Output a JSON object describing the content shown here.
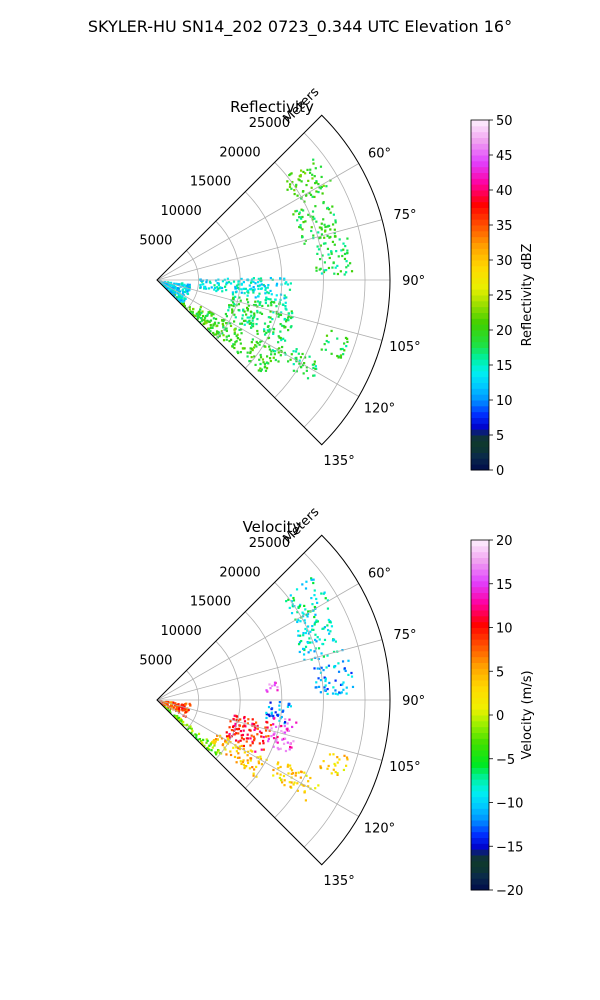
{
  "figure_title": "SKYLER-HU  SN14_202  0723_0.344 UTC Elevation 16°",
  "chart_data": [
    {
      "type": "polar-sector",
      "title": "Reflectivity",
      "radial_label": "Meters",
      "radial_ticks": [
        "5000",
        "10000",
        "15000",
        "20000",
        "25000"
      ],
      "radial_tick_values": [
        5000,
        10000,
        15000,
        20000,
        25000
      ],
      "r_max": 28000,
      "azimuth_ticks": [
        "60°",
        "75°",
        "90°",
        "105°",
        "120°",
        "135°"
      ],
      "azimuth_tick_values": [
        60,
        75,
        90,
        105,
        120,
        135
      ],
      "azimuth_range": [
        45,
        135
      ],
      "grid": true,
      "colorbar": {
        "label": "Reflectivity dBZ",
        "min": 0,
        "max": 50,
        "ticks": [
          "0",
          "5",
          "10",
          "15",
          "20",
          "25",
          "30",
          "35",
          "40",
          "45",
          "50"
        ]
      },
      "echo_regions": [
        {
          "az": [
            51,
            62
          ],
          "r": [
            19000,
            24000
          ],
          "value": 20
        },
        {
          "az": [
            63,
            76
          ],
          "r": [
            18000,
            23000
          ],
          "value": 19
        },
        {
          "az": [
            77,
            88
          ],
          "r": [
            19000,
            23500
          ],
          "value": 18
        },
        {
          "az": [
            88,
            100
          ],
          "r": [
            5000,
            16000
          ],
          "value": 14
        },
        {
          "az": [
            100,
            118
          ],
          "r": [
            9000,
            17000
          ],
          "value": 18
        },
        {
          "az": [
            120,
            132
          ],
          "r": [
            6000,
            17000
          ],
          "value": 20
        },
        {
          "az": [
            128,
            135
          ],
          "r": [
            0,
            10000
          ],
          "value": 20
        },
        {
          "az": [
            95,
            135
          ],
          "r": [
            0,
            4000
          ],
          "value": 13
        },
        {
          "az": [
            106,
            113
          ],
          "r": [
            21000,
            24000
          ],
          "value": 19
        },
        {
          "az": [
            116,
            124
          ],
          "r": [
            16000,
            22000
          ],
          "value": 18
        }
      ]
    },
    {
      "type": "polar-sector",
      "title": "Velocity",
      "radial_label": "Meters",
      "radial_ticks": [
        "5000",
        "10000",
        "15000",
        "20000",
        "25000"
      ],
      "radial_tick_values": [
        5000,
        10000,
        15000,
        20000,
        25000
      ],
      "r_max": 28000,
      "azimuth_ticks": [
        "60°",
        "75°",
        "90°",
        "105°",
        "120°",
        "135°"
      ],
      "azimuth_tick_values": [
        60,
        75,
        90,
        105,
        120,
        135
      ],
      "azimuth_range": [
        45,
        135
      ],
      "grid": true,
      "colorbar": {
        "label": "Velocity (m/s)",
        "min": -20,
        "max": 20,
        "ticks": [
          "−20",
          "−15",
          "−10",
          "−5",
          "0",
          "5",
          "10",
          "15",
          "20"
        ]
      },
      "echo_regions": [
        {
          "az": [
            51,
            62
          ],
          "r": [
            19000,
            24000
          ],
          "value": -8
        },
        {
          "az": [
            63,
            76
          ],
          "r": [
            18000,
            23000
          ],
          "value": -9
        },
        {
          "az": [
            77,
            88
          ],
          "r": [
            19000,
            23500
          ],
          "value": -11
        },
        {
          "az": [
            90,
            100
          ],
          "r": [
            13000,
            16000
          ],
          "value": -12
        },
        {
          "az": [
            100,
            118
          ],
          "r": [
            9000,
            14000
          ],
          "value": 10
        },
        {
          "az": [
            98,
            112
          ],
          "r": [
            14000,
            17000
          ],
          "value": 15
        },
        {
          "az": [
            118,
            128
          ],
          "r": [
            8000,
            15000
          ],
          "value": 4
        },
        {
          "az": [
            128,
            135
          ],
          "r": [
            0,
            10000
          ],
          "value": -2
        },
        {
          "az": [
            95,
            120
          ],
          "r": [
            0,
            4000
          ],
          "value": 8
        },
        {
          "az": [
            80,
            86
          ],
          "r": [
            13000,
            14500
          ],
          "value": 15
        },
        {
          "az": [
            106,
            113
          ],
          "r": [
            21000,
            24000
          ],
          "value": 3
        },
        {
          "az": [
            116,
            124
          ],
          "r": [
            16000,
            22000
          ],
          "value": 3
        }
      ]
    }
  ]
}
